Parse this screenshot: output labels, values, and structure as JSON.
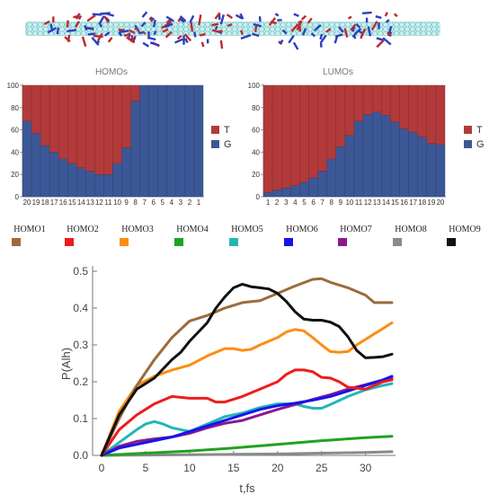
{
  "colors": {
    "T": "#b23a3a",
    "G": "#3c5796",
    "nanotube": "#5fbfc0",
    "strand_blue": "#2b3fc0",
    "strand_red": "#c0282f"
  },
  "chart_data": [
    {
      "type": "bar",
      "stacked": true,
      "title": "HOMOs",
      "categories": [
        "20",
        "19",
        "18",
        "17",
        "16",
        "15",
        "14",
        "13",
        "12",
        "11",
        "10",
        "9",
        "8",
        "7",
        "6",
        "5",
        "4",
        "3",
        "2",
        "1"
      ],
      "series": [
        {
          "name": "G",
          "values": [
            68,
            57,
            46,
            40,
            34,
            30,
            26,
            23,
            20,
            20,
            30,
            44,
            86,
            100,
            100,
            100,
            100,
            100,
            100,
            100
          ]
        },
        {
          "name": "T",
          "values": [
            32,
            43,
            54,
            60,
            66,
            70,
            74,
            77,
            80,
            80,
            70,
            56,
            14,
            0,
            0,
            0,
            0,
            0,
            0,
            0
          ]
        }
      ],
      "ylim": [
        0,
        100
      ],
      "yticks": [
        "0",
        "20",
        "40",
        "60",
        "80",
        "100"
      ],
      "legend": [
        "T",
        "G"
      ],
      "legend_position": "right"
    },
    {
      "type": "bar",
      "stacked": true,
      "title": "LUMOs",
      "categories": [
        "1",
        "2",
        "3",
        "4",
        "5",
        "6",
        "7",
        "8",
        "9",
        "10",
        "11",
        "12",
        "13",
        "14",
        "15",
        "16",
        "17",
        "18",
        "19",
        "20"
      ],
      "series": [
        {
          "name": "G",
          "values": [
            4,
            6,
            8,
            10,
            13,
            17,
            23,
            34,
            45,
            55,
            68,
            74,
            76,
            73,
            67,
            61,
            58,
            54,
            48,
            47
          ]
        },
        {
          "name": "T",
          "values": [
            96,
            94,
            92,
            90,
            87,
            83,
            77,
            66,
            55,
            45,
            32,
            26,
            24,
            27,
            33,
            39,
            42,
            46,
            52,
            53
          ]
        }
      ],
      "ylim": [
        0,
        100
      ],
      "yticks": [
        "0",
        "20",
        "40",
        "60",
        "80",
        "100"
      ],
      "legend": [
        "T",
        "G"
      ],
      "legend_position": "right"
    },
    {
      "type": "line",
      "xlabel": "t,fs",
      "ylabel": "P(Alh)",
      "xlim": [
        0,
        33
      ],
      "ylim": [
        0,
        0.5
      ],
      "xticks": [
        "0",
        "5",
        "10",
        "15",
        "20",
        "25",
        "30"
      ],
      "yticks": [
        "0.0",
        "0.1",
        "0.2",
        "0.3",
        "0.4",
        "0.5"
      ],
      "legend_position": "top",
      "series": [
        {
          "name": "HOMO1",
          "color": "#9c6b3c",
          "x": [
            0,
            2,
            4,
            6,
            8,
            10,
            12,
            14,
            16,
            18,
            20,
            22,
            24,
            25,
            26,
            28,
            30,
            31,
            33
          ],
          "y": [
            0,
            0.1,
            0.19,
            0.26,
            0.32,
            0.365,
            0.38,
            0.4,
            0.415,
            0.42,
            0.44,
            0.46,
            0.478,
            0.48,
            0.47,
            0.455,
            0.435,
            0.415,
            0.415
          ]
        },
        {
          "name": "HOMO2",
          "color": "#ee1c1c",
          "x": [
            0,
            2,
            4,
            5,
            6,
            8,
            10,
            12,
            13,
            14,
            16,
            18,
            20,
            21,
            22,
            23,
            24,
            25,
            26,
            27,
            28,
            30,
            31,
            32,
            33
          ],
          "y": [
            0,
            0.07,
            0.11,
            0.125,
            0.14,
            0.16,
            0.155,
            0.155,
            0.145,
            0.145,
            0.16,
            0.18,
            0.2,
            0.22,
            0.232,
            0.232,
            0.227,
            0.212,
            0.21,
            0.2,
            0.185,
            0.18,
            0.19,
            0.2,
            0.205
          ]
        },
        {
          "name": "HOMO3",
          "color": "#ff8c14",
          "x": [
            0,
            2,
            4,
            6,
            8,
            10,
            12,
            14,
            15,
            16,
            17,
            18,
            20,
            21,
            22,
            23,
            24,
            25,
            26,
            27,
            28,
            29,
            30,
            31,
            32,
            33
          ],
          "y": [
            0,
            0.12,
            0.19,
            0.215,
            0.232,
            0.245,
            0.27,
            0.29,
            0.29,
            0.285,
            0.288,
            0.3,
            0.32,
            0.335,
            0.342,
            0.338,
            0.32,
            0.3,
            0.282,
            0.28,
            0.282,
            0.3,
            0.315,
            0.33,
            0.345,
            0.36
          ]
        },
        {
          "name": "HOMO4",
          "color": "#1fa31f",
          "x": [
            0,
            5,
            10,
            15,
            20,
            25,
            30,
            33
          ],
          "y": [
            0,
            0.006,
            0.012,
            0.02,
            0.03,
            0.04,
            0.048,
            0.052
          ]
        },
        {
          "name": "HOMO5",
          "color": "#25b5b5",
          "x": [
            0,
            2,
            4,
            5,
            6,
            7,
            8,
            10,
            12,
            14,
            16,
            18,
            20,
            22,
            23,
            24,
            25,
            26,
            28,
            30,
            32,
            33
          ],
          "y": [
            0,
            0.035,
            0.07,
            0.085,
            0.092,
            0.085,
            0.075,
            0.065,
            0.085,
            0.105,
            0.115,
            0.13,
            0.14,
            0.14,
            0.133,
            0.128,
            0.128,
            0.138,
            0.16,
            0.178,
            0.19,
            0.195
          ]
        },
        {
          "name": "HOMO6",
          "color": "#1414ee",
          "x": [
            0,
            2,
            4,
            6,
            8,
            10,
            12,
            14,
            16,
            18,
            20,
            22,
            24,
            26,
            28,
            30,
            32,
            33
          ],
          "y": [
            0,
            0.02,
            0.03,
            0.04,
            0.05,
            0.065,
            0.08,
            0.095,
            0.11,
            0.125,
            0.135,
            0.142,
            0.15,
            0.16,
            0.175,
            0.19,
            0.205,
            0.215
          ]
        },
        {
          "name": "HOMO7",
          "color": "#8a198f",
          "x": [
            0,
            2,
            4,
            6,
            8,
            10,
            12,
            14,
            16,
            18,
            20,
            22,
            24,
            26,
            28,
            30,
            32,
            33
          ],
          "y": [
            0,
            0.025,
            0.038,
            0.045,
            0.05,
            0.06,
            0.075,
            0.087,
            0.095,
            0.11,
            0.125,
            0.138,
            0.152,
            0.165,
            0.18,
            0.192,
            0.205,
            0.21
          ]
        },
        {
          "name": "HOMO8",
          "color": "#8a8a8a",
          "x": [
            0,
            5,
            10,
            15,
            20,
            25,
            30,
            33
          ],
          "y": [
            0,
            0.001,
            0.002,
            0.003,
            0.004,
            0.006,
            0.008,
            0.01
          ]
        },
        {
          "name": "HOMO9",
          "color": "#111111",
          "x": [
            0,
            2,
            4,
            5,
            6,
            8,
            9,
            10,
            12,
            13,
            14,
            15,
            16,
            17,
            18,
            19,
            20,
            21,
            22,
            23,
            24,
            25,
            26,
            27,
            28,
            29,
            30,
            31,
            32,
            33
          ],
          "y": [
            0,
            0.11,
            0.18,
            0.195,
            0.21,
            0.26,
            0.28,
            0.31,
            0.36,
            0.4,
            0.43,
            0.455,
            0.465,
            0.458,
            0.455,
            0.452,
            0.44,
            0.418,
            0.39,
            0.37,
            0.367,
            0.367,
            0.362,
            0.35,
            0.322,
            0.285,
            0.265,
            0.266,
            0.268,
            0.275
          ]
        }
      ]
    }
  ]
}
